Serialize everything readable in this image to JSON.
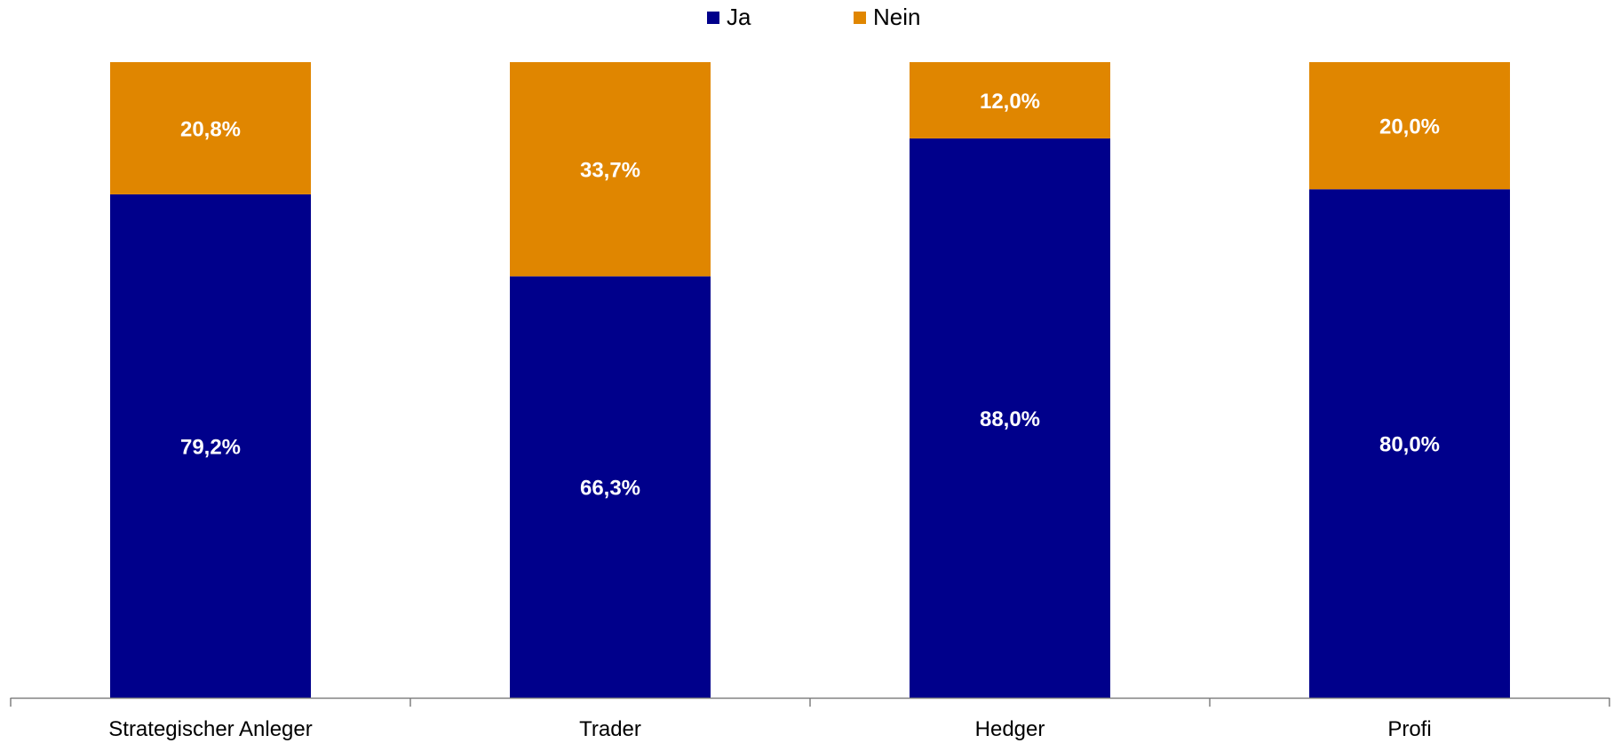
{
  "chart_data": {
    "type": "bar",
    "stacked": true,
    "categories": [
      "Strategischer Anleger",
      "Trader",
      "Hedger",
      "Profi"
    ],
    "series": [
      {
        "name": "Ja",
        "values": [
          79.2,
          66.3,
          88.0,
          80.0
        ],
        "labels": [
          "79,2%",
          "66,3%",
          "88,0%",
          "80,0%"
        ],
        "color": "#00008B"
      },
      {
        "name": "Nein",
        "values": [
          20.8,
          33.7,
          12.0,
          20.0
        ],
        "labels": [
          "20,8%",
          "33,7%",
          "12,0%",
          "20,0%"
        ],
        "color": "#E08600"
      }
    ],
    "ylim": [
      0,
      100
    ],
    "legend_position": "top-center",
    "grid": false,
    "label_color": "#FFFFFF",
    "axis_color": "#808080"
  }
}
